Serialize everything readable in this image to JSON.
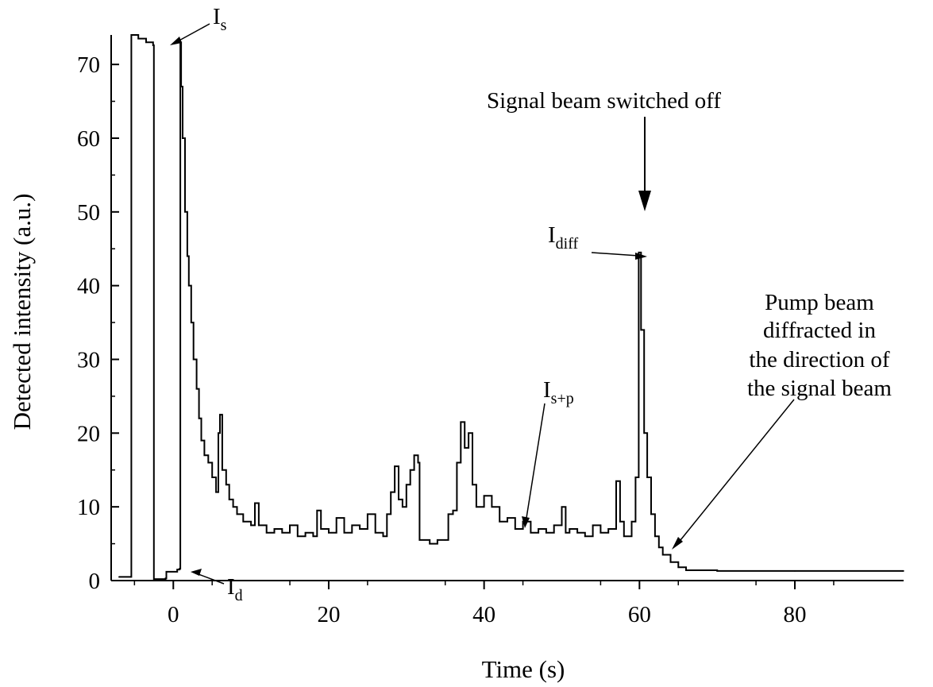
{
  "chart_data": {
    "type": "line",
    "title": "",
    "xlabel": "Time (s)",
    "ylabel": "Detected intensity (a.u.)",
    "xlim": [
      -8,
      94
    ],
    "ylim": [
      0,
      74
    ],
    "x_ticks": [
      0,
      20,
      40,
      60,
      80
    ],
    "y_ticks": [
      0,
      10,
      20,
      30,
      40,
      50,
      60,
      70
    ],
    "grid": false,
    "legend": "none",
    "series": [
      {
        "points": [
          [
            -7.0,
            0.5
          ],
          [
            -5.5,
            0.5
          ],
          [
            -5.4,
            74
          ],
          [
            -4.5,
            73.5
          ],
          [
            -3.5,
            73.0
          ],
          [
            -2.6,
            72.6
          ],
          [
            -2.5,
            0.2
          ],
          [
            -1.0,
            0.3
          ],
          [
            -0.9,
            1.2
          ],
          [
            0.5,
            1.5
          ],
          [
            0.8,
            1.6
          ],
          [
            0.9,
            73
          ],
          [
            1.0,
            67
          ],
          [
            1.2,
            60
          ],
          [
            1.5,
            50
          ],
          [
            1.8,
            44
          ],
          [
            2.0,
            40
          ],
          [
            2.3,
            35
          ],
          [
            2.6,
            30
          ],
          [
            3.0,
            26
          ],
          [
            3.3,
            22
          ],
          [
            3.6,
            19
          ],
          [
            4.0,
            17
          ],
          [
            4.5,
            16
          ],
          [
            5.0,
            14
          ],
          [
            5.5,
            12
          ],
          [
            5.8,
            20
          ],
          [
            6.0,
            22.5
          ],
          [
            6.3,
            15
          ],
          [
            6.8,
            13
          ],
          [
            7.2,
            11
          ],
          [
            7.7,
            10
          ],
          [
            8.2,
            9
          ],
          [
            9.0,
            8
          ],
          [
            10.0,
            7.5
          ],
          [
            10.5,
            10.5
          ],
          [
            11.0,
            7.5
          ],
          [
            12.0,
            6.5
          ],
          [
            13.0,
            7.0
          ],
          [
            14.0,
            6.5
          ],
          [
            15.0,
            7.5
          ],
          [
            16.0,
            6.0
          ],
          [
            17.0,
            6.5
          ],
          [
            18.0,
            6.0
          ],
          [
            18.5,
            9.5
          ],
          [
            19.0,
            7.0
          ],
          [
            20.0,
            6.5
          ],
          [
            21.0,
            8.5
          ],
          [
            22.0,
            6.5
          ],
          [
            23.0,
            7.5
          ],
          [
            24.0,
            7.0
          ],
          [
            25.0,
            9.0
          ],
          [
            26.0,
            6.5
          ],
          [
            27.0,
            6.0
          ],
          [
            27.5,
            9.0
          ],
          [
            28.0,
            12.0
          ],
          [
            28.5,
            15.5
          ],
          [
            29.0,
            11.0
          ],
          [
            29.5,
            10.0
          ],
          [
            30.0,
            13.0
          ],
          [
            30.5,
            15.0
          ],
          [
            31.0,
            17.0
          ],
          [
            31.5,
            16.0
          ],
          [
            31.7,
            5.5
          ],
          [
            33.0,
            5.0
          ],
          [
            34.0,
            5.5
          ],
          [
            35.0,
            5.5
          ],
          [
            35.4,
            9.0
          ],
          [
            36.0,
            9.5
          ],
          [
            36.5,
            16.0
          ],
          [
            37.0,
            21.5
          ],
          [
            37.5,
            18.0
          ],
          [
            38.0,
            20.0
          ],
          [
            38.5,
            13.0
          ],
          [
            39.0,
            10.0
          ],
          [
            40.0,
            11.5
          ],
          [
            41.0,
            10.0
          ],
          [
            42.0,
            8.0
          ],
          [
            43.0,
            8.5
          ],
          [
            44.0,
            7.0
          ],
          [
            45.0,
            8.0
          ],
          [
            46.0,
            6.5
          ],
          [
            47.0,
            7.0
          ],
          [
            48.0,
            6.5
          ],
          [
            49.0,
            7.5
          ],
          [
            50.0,
            10.0
          ],
          [
            50.5,
            6.5
          ],
          [
            51.0,
            7.0
          ],
          [
            52.0,
            6.5
          ],
          [
            53.0,
            6.0
          ],
          [
            54.0,
            7.5
          ],
          [
            55.0,
            6.5
          ],
          [
            56.0,
            7.0
          ],
          [
            57.0,
            13.5
          ],
          [
            57.5,
            8.0
          ],
          [
            58.0,
            6.0
          ],
          [
            59.0,
            8.0
          ],
          [
            59.5,
            14.0
          ],
          [
            59.9,
            44.5
          ],
          [
            60.2,
            34.0
          ],
          [
            60.6,
            20.0
          ],
          [
            61.0,
            14.0
          ],
          [
            61.5,
            9.0
          ],
          [
            62.0,
            6.0
          ],
          [
            62.5,
            4.5
          ],
          [
            63.0,
            3.5
          ],
          [
            64.0,
            2.5
          ],
          [
            65.0,
            1.8
          ],
          [
            66.0,
            1.4
          ],
          [
            70.0,
            1.3
          ],
          [
            80.0,
            1.3
          ],
          [
            94.0,
            1.3
          ]
        ]
      }
    ],
    "annotations": [
      {
        "label_main": "I",
        "label_sub": "s"
      },
      {
        "label_main": "I",
        "label_sub": "d"
      },
      {
        "label_main": "I",
        "label_sub": "diff"
      },
      {
        "label_main": "I",
        "label_sub": "s+p"
      },
      {
        "text": "Signal beam switched off"
      },
      {
        "lines": [
          "Pump beam",
          "diffracted in",
          "the direction of",
          "the signal beam"
        ]
      }
    ]
  }
}
